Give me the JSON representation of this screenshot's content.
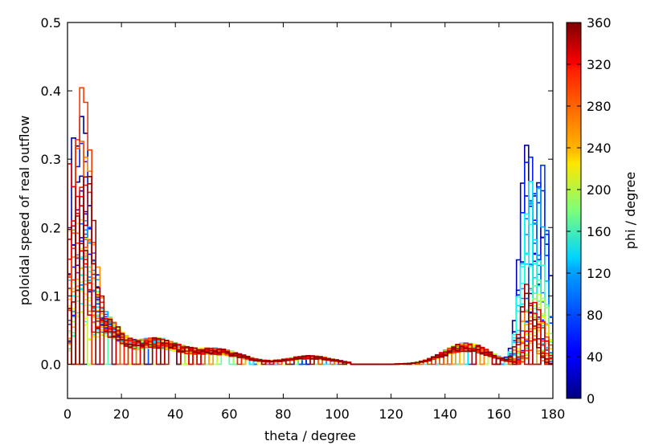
{
  "chart_data": {
    "type": "step",
    "xlabel": "theta / degree",
    "ylabel": "poloidal speed of real outflow",
    "xlim": [
      0,
      180
    ],
    "ylim": [
      -0.05,
      0.5
    ],
    "xticks": [
      "0",
      "20",
      "40",
      "60",
      "80",
      "100",
      "120",
      "140",
      "160",
      "180"
    ],
    "yticks": [
      "0.0",
      "0.1",
      "0.2",
      "0.3",
      "0.4",
      "0.5"
    ],
    "grid": false,
    "colorbar": {
      "label": "phi / degree",
      "range": [
        0,
        360
      ],
      "ticks": [
        "0",
        "40",
        "80",
        "120",
        "160",
        "200",
        "240",
        "280",
        "320",
        "360"
      ],
      "colormap": "jet"
    },
    "series_description": "many step-histogram curves, one per phi value (0-360 degrees), colored by phi",
    "representative_profiles": [
      {
        "phi": 20,
        "peak_near_pole_0": 0.31,
        "peak_near_pole_180": 0.28,
        "min_midplane": 0.0
      },
      {
        "phi": 100,
        "peak_near_pole_0": 0.15,
        "peak_near_pole_180": 0.25,
        "min_midplane": 0.0
      },
      {
        "phi": 200,
        "peak_near_pole_0": 0.1,
        "peak_near_pole_180": 0.08,
        "min_midplane": 0.0
      },
      {
        "phi": 300,
        "peak_near_pole_0": 0.3,
        "peak_near_pole_180": 0.06,
        "min_midplane": 0.0
      },
      {
        "phi": 350,
        "peak_near_pole_0": 0.29,
        "peak_near_pole_180": 0.11,
        "min_midplane": 0.0
      }
    ]
  }
}
